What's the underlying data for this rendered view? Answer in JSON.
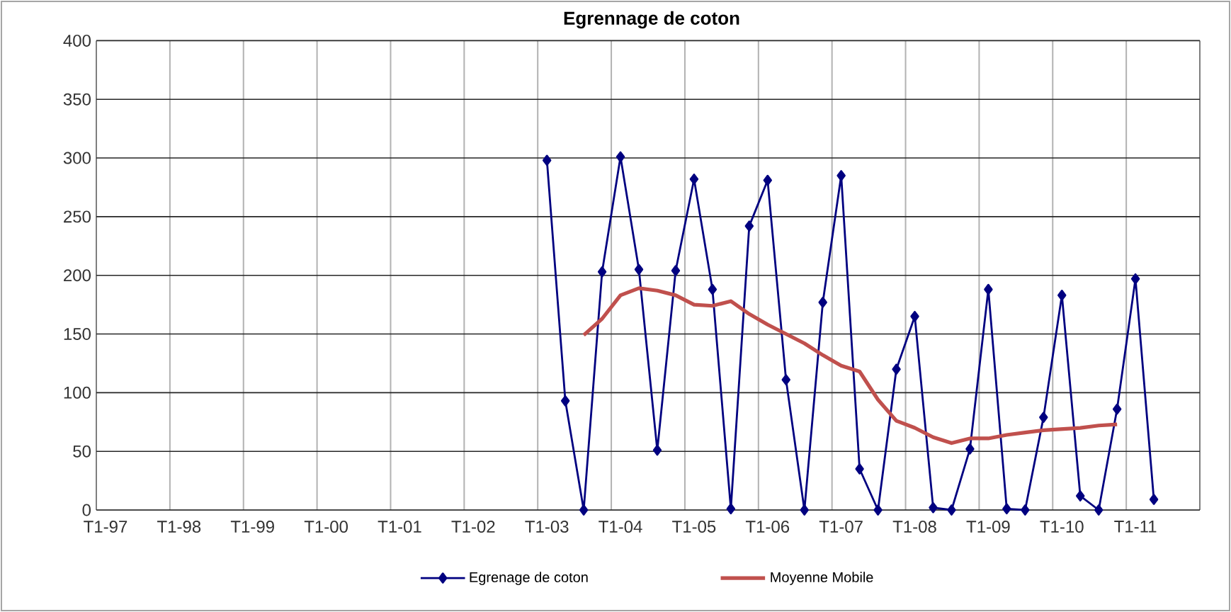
{
  "chart_data": {
    "type": "line",
    "title": "Egrennage de coton",
    "categories": [
      "T1-97",
      null,
      null,
      null,
      "T1-98",
      null,
      null,
      null,
      "T1-99",
      null,
      null,
      null,
      "T1-00",
      null,
      null,
      null,
      "T1-01",
      null,
      null,
      null,
      "T1-02",
      null,
      null,
      null,
      "T1-03",
      null,
      null,
      null,
      "T1-04",
      null,
      null,
      null,
      "T1-05",
      null,
      null,
      null,
      "T1-06",
      null,
      null,
      null,
      "T1-07",
      null,
      null,
      null,
      "T1-08",
      null,
      null,
      null,
      "T1-09",
      null,
      null,
      null,
      "T1-10",
      null,
      null,
      null,
      "T1-11",
      null,
      null,
      null
    ],
    "series": [
      {
        "name": "Egrenage de coton",
        "color": "#000080",
        "marker": "diamond",
        "values": [
          null,
          null,
          null,
          null,
          null,
          null,
          null,
          null,
          null,
          null,
          null,
          null,
          null,
          null,
          null,
          null,
          null,
          null,
          null,
          null,
          null,
          null,
          null,
          null,
          298,
          93,
          0,
          203,
          301,
          205,
          51,
          204,
          282,
          188,
          1,
          242,
          281,
          111,
          0,
          177,
          285,
          35,
          0,
          120,
          165,
          2,
          0,
          52,
          188,
          1,
          0,
          79,
          183,
          12,
          0,
          86,
          197,
          9,
          null,
          null
        ]
      },
      {
        "name": "Moyenne Mobile",
        "color": "#c0504d",
        "marker": "none",
        "values": [
          null,
          null,
          null,
          null,
          null,
          null,
          null,
          null,
          null,
          null,
          null,
          null,
          null,
          null,
          null,
          null,
          null,
          null,
          null,
          null,
          null,
          null,
          null,
          null,
          null,
          null,
          149,
          163,
          183,
          189,
          187,
          183,
          175,
          174,
          178,
          167,
          158,
          150,
          142,
          132,
          123,
          118,
          94,
          76,
          70,
          62,
          57,
          61,
          61,
          64,
          66,
          68,
          69,
          70,
          72,
          73,
          null,
          null,
          null,
          null
        ]
      }
    ],
    "ylim": [
      0,
      400
    ],
    "yticks": [
      0,
      50,
      100,
      150,
      200,
      250,
      300,
      350,
      400
    ],
    "grid": true,
    "legend": "bottom"
  }
}
